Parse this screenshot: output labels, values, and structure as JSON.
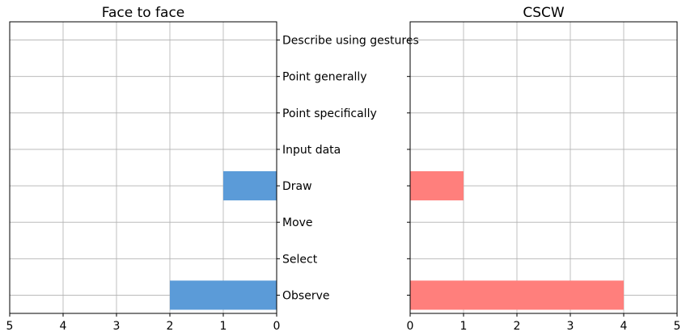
{
  "chart_data": [
    {
      "type": "bar",
      "orientation": "horizontal",
      "title": "Face to face",
      "x_direction": "reversed",
      "xlim": [
        0,
        5
      ],
      "x_ticks": [
        "5",
        "4",
        "3",
        "2",
        "1",
        "0"
      ],
      "grid": true,
      "categories": [
        "Observe",
        "Select",
        "Move",
        "Draw",
        "Input data",
        "Point specifically",
        "Point generally",
        "Describe using gestures"
      ],
      "values": [
        2,
        0,
        0,
        1,
        0,
        0,
        0,
        0
      ],
      "color": "#5b9bd8"
    },
    {
      "type": "bar",
      "orientation": "horizontal",
      "title": "CSCW",
      "xlim": [
        0,
        5
      ],
      "x_ticks": [
        "0",
        "1",
        "2",
        "3",
        "4",
        "5"
      ],
      "grid": true,
      "categories": [
        "Observe",
        "Select",
        "Move",
        "Draw",
        "Input data",
        "Point specifically",
        "Point generally",
        "Describe using gestures"
      ],
      "values": [
        4,
        0,
        0,
        1,
        0,
        0,
        0,
        0
      ],
      "color": "#ff7f7c"
    }
  ]
}
